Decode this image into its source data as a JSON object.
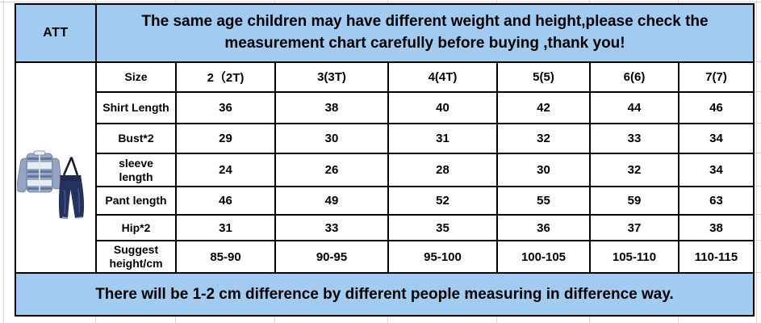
{
  "att": {
    "label": "ATT"
  },
  "header": {
    "text": "The same age children may have different weight and height,please check the\nmeasurement chart carefully before buying ,thank you!"
  },
  "footer": {
    "text": "There will be 1-2 cm difference by different people measuring in difference way."
  },
  "product_image": {
    "description": "boys striped long-sleeve shirt with navy suspender jeans outfit"
  },
  "size_table": {
    "size_label": "Size",
    "columns": [
      "2（2T)",
      "3(3T)",
      "4(4T)",
      "5(5)",
      "6(6)",
      "7(7)"
    ],
    "rows": [
      {
        "label": "Shirt Length",
        "values": [
          "36",
          "38",
          "40",
          "42",
          "44",
          "46"
        ]
      },
      {
        "label": "Bust*2",
        "values": [
          "29",
          "30",
          "31",
          "32",
          "33",
          "34"
        ]
      },
      {
        "label": "sleeve\nlength",
        "values": [
          "24",
          "26",
          "28",
          "30",
          "32",
          "34"
        ]
      },
      {
        "label": "Pant length",
        "values": [
          "46",
          "49",
          "52",
          "55",
          "59",
          "63"
        ]
      },
      {
        "label": "Hip*2",
        "values": [
          "31",
          "33",
          "35",
          "36",
          "37",
          "38"
        ]
      },
      {
        "label": "Suggest\nheight/cm",
        "values": [
          "85-90",
          "90-95",
          "95-100",
          "100-105",
          "105-110",
          "110-115"
        ]
      }
    ]
  },
  "colors": {
    "header_bg": "#a2cbf2",
    "accent_red": "#c92237",
    "table_border": "#000000",
    "gridline_gray": "#d4d8dd"
  }
}
